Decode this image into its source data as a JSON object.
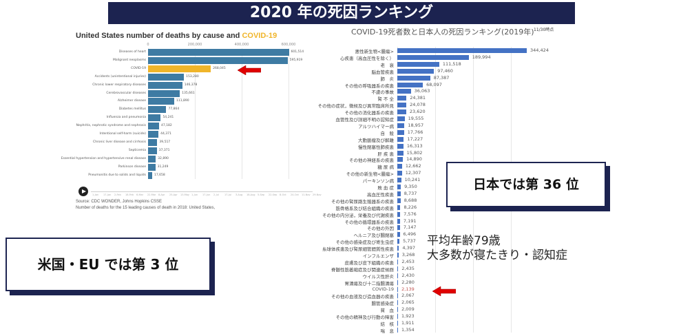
{
  "banner": {
    "title": "2020 年の死因ランキング"
  },
  "chart_data": [
    {
      "type": "bar",
      "orientation": "horizontal",
      "title": "United States number of deaths by cause and",
      "title_highlight": "COVID-19",
      "xticks": [
        "0",
        "200,000",
        "400,000",
        "600,000"
      ],
      "xlim": [
        0,
        600000
      ],
      "categories": [
        "Diseases of heart",
        "Malignant neoplasms",
        "COVID-19",
        "Accidents (unintentional injuries)",
        "Chronic lower respiratory diseases",
        "Cerebrovascular diseases",
        "Alzheimer disease",
        "Diabetes mellitus",
        "Influenza and pneumonia",
        "Nephritis, nephrotic syndrome and nephrosis",
        "Intentional self-harm (suicide)",
        "Chronic liver disease and cirrhosis",
        "Septicemia",
        "Essential hypertension and hypertensive renal disease",
        "Parkinson disease",
        "Pneumonitis due to solids and liquids"
      ],
      "values": [
        601514,
        595919,
        268045,
        153280,
        146378,
        135661,
        111890,
        77864,
        54241,
        47182,
        44371,
        39517,
        37371,
        32890,
        31249,
        17658
      ],
      "value_labels": [
        "601,514",
        "595,919",
        "268,045",
        "153,280",
        "146,378",
        "135,661",
        "111,890",
        "77,864",
        "54,241",
        "47,182",
        "44,371",
        "39,517",
        "37,371",
        "32,890",
        "31,249",
        "17,658"
      ],
      "highlight_index": 2,
      "colors": {
        "bar": "#3e7ba3",
        "highlight": "#f0b52a"
      },
      "timeline": [
        "1-Jan",
        "17-Jan",
        "2-Feb",
        "18-Feb",
        "6-Mar",
        "22-Mar",
        "8-Apr",
        "25-Apr",
        "13-May",
        "1-Jun",
        "17-Jun",
        "2-Jul",
        "17-Jul",
        "3-Aug",
        "18-Aug",
        "5-Sep",
        "22-Sep",
        "8-Oct",
        "24-Oct",
        "11-Nov",
        "29-Nov"
      ],
      "source": "Source: CDC WONDER, Johns Hopkins CSSE",
      "note": "Number of deaths for the 15 leading causes of death in 2018: United States,"
    },
    {
      "type": "bar",
      "orientation": "horizontal",
      "title": "COVID-19死者数と日本人の死因ランキング(2019年)",
      "date": "11/30時点",
      "xlim": [
        0,
        344424
      ],
      "categories": [
        "悪性新生物<腫瘍>",
        "心疾患（高血圧性を除く）",
        "老　衰",
        "脳血管疾患",
        "肺　炎",
        "その他の呼吸器系の疾患",
        "不慮の事故",
        "腎 不 全",
        "その他の症状，徴候及び異常臨床所見",
        "その他の消化器系の疾患",
        "血管性及び詳細不明の認知症",
        "アルツハイマー病",
        "自　殺",
        "大動脈瘤及び解離",
        "慢性閉塞性肺疾患",
        "肝 疾 患",
        "その他の神経系の疾患",
        "糖 尿 病",
        "その他の新生物<腫瘍>",
        "パーキンソン病",
        "敗 血 症",
        "高血圧性疾患",
        "その他の腎尿路生殖器系の疾患",
        "筋骨格系及び結合組織の疾患",
        "その他の内分泌，栄養及び代謝疾患",
        "その他の循環器系の疾患",
        "その他の外因",
        "ヘルニア及び腸閉塞",
        "その他の感染症及び寄生虫症",
        "糸球体疾患及び腎尿細管間質性疾患",
        "インフルエンザ",
        "皮膚及び皮下組織の疾患",
        "脊髄性筋萎縮症及び関連症候群",
        "ウイルス性肝炎",
        "胃潰瘍及び十二指腸潰瘍",
        "COVID-19",
        "その他の血液及び造血器の疾患",
        "腸管感染症",
        "貧　血",
        "その他の精神及び行動の障害",
        "結　核",
        "喘　息"
      ],
      "values": [
        344424,
        189994,
        111518,
        97460,
        87387,
        68097,
        36063,
        24381,
        24078,
        23620,
        19555,
        18957,
        17766,
        17227,
        16313,
        15802,
        14890,
        12662,
        12307,
        10241,
        9350,
        8737,
        8688,
        8226,
        7576,
        7191,
        7147,
        6496,
        5737,
        4397,
        3268,
        2453,
        2435,
        2430,
        2280,
        2139,
        2067,
        2065,
        2009,
        1923,
        1911,
        1354
      ],
      "value_labels": [
        "344,424",
        "189,994",
        "111,518",
        "97,460",
        "87,387",
        "68,097",
        "36,063",
        "24,381",
        "24,078",
        "23,620",
        "19,555",
        "18,957",
        "17,766",
        "17,227",
        "16,313",
        "15,802",
        "14,890",
        "12,662",
        "12,307",
        "10,241",
        "9,350",
        "8,737",
        "8,688",
        "8,226",
        "7,576",
        "7,191",
        "7,147",
        "6,496",
        "5,737",
        "4,397",
        "3,268",
        "2,453",
        "2,435",
        "2,430",
        "2,280",
        "2,139",
        "2,067",
        "2,065",
        "2,009",
        "1,923",
        "1,911",
        "1,354"
      ],
      "highlight_index": 35,
      "colors": {
        "bar": "#4472c4",
        "highlight_text": "#c0504d"
      }
    }
  ],
  "callouts": {
    "japan": "日本では第 36 位",
    "us_eu": "米国・EU では第 3 位",
    "note_line1": "平均年齢79歳",
    "note_line2": "大多数が寝たきり・認知症"
  },
  "colors": {
    "navy": "#1c2350",
    "arrow": "#e00000"
  }
}
